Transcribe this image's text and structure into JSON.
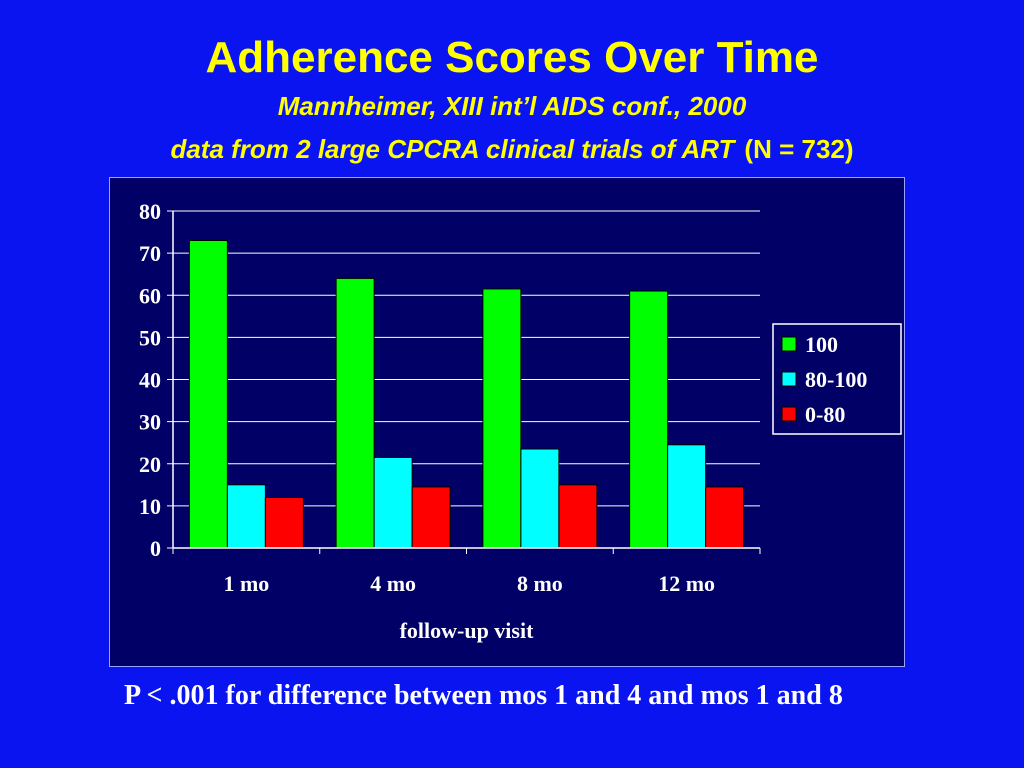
{
  "slide": {
    "title": "Adherence Scores Over Time",
    "subtitle": "Mannheimer, XIII int’l AIDS conf., 2000",
    "subtitle2_italic": "data from 2 large CPCRA clinical trials of ART",
    "subtitle2_n": "(N = 732)",
    "footnote": "P < .001 for difference between mos 1 and 4 and mos 1 and 8"
  },
  "chart_data": {
    "type": "bar",
    "categories": [
      "1 mo",
      "4 mo",
      "8 mo",
      "12 mo"
    ],
    "series": [
      {
        "name": "100",
        "color": "#00ff00",
        "values": [
          73,
          64,
          61.5,
          61
        ]
      },
      {
        "name": "80-100",
        "color": "#00ffff",
        "values": [
          15,
          21.5,
          23.5,
          24.5
        ]
      },
      {
        "name": "0-80",
        "color": "#ff0000",
        "values": [
          12,
          14.5,
          15,
          14.5
        ]
      }
    ],
    "title": "",
    "xlabel": "follow-up visit",
    "ylabel": "",
    "ylim": [
      0,
      80
    ],
    "yticks": [
      0,
      10,
      20,
      30,
      40,
      50,
      60,
      70,
      80
    ],
    "grid": true,
    "legend": "right",
    "colors": {
      "plot_background": "#000066",
      "slide_background": "#0a14f0"
    }
  }
}
